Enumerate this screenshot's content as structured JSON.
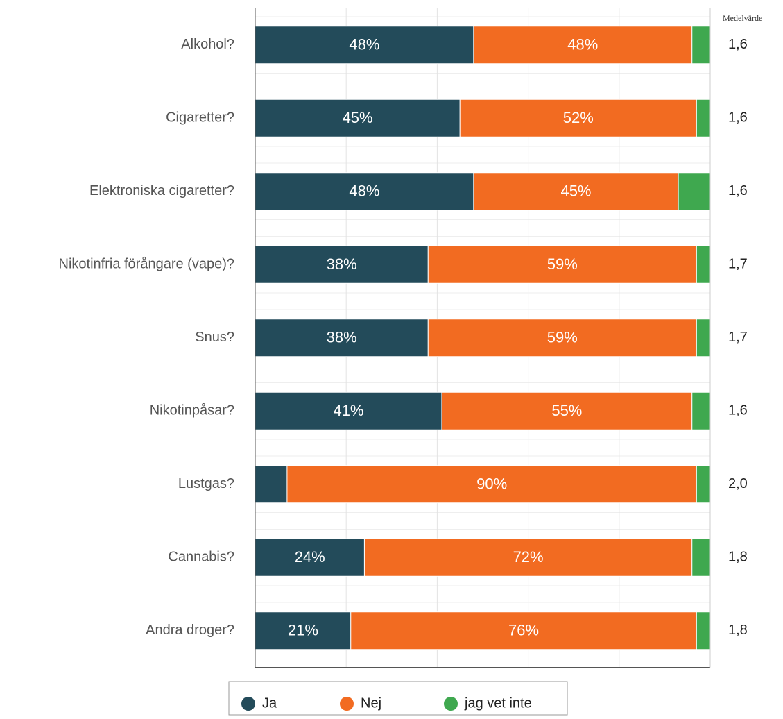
{
  "chart_data": {
    "type": "stacked-bar-horizontal",
    "categories": [
      "Alkohol?",
      "Cigaretter?",
      "Elektroniska cigaretter?",
      "Nikotinfria förångare (vape)?",
      "Snus?",
      "Nikotinpåsar?",
      "Lustgas?",
      "Cannabis?",
      "Andra droger?"
    ],
    "series": [
      {
        "name": "Ja",
        "color": "#234b5a",
        "values": [
          48,
          45,
          48,
          38,
          38,
          41,
          7,
          24,
          21
        ],
        "value_labels": [
          "48%",
          "45%",
          "48%",
          "38%",
          "38%",
          "41%",
          null,
          "24%",
          "21%"
        ]
      },
      {
        "name": "Nej",
        "color": "#f26b21",
        "values": [
          48,
          52,
          45,
          59,
          59,
          55,
          90,
          72,
          76
        ],
        "value_labels": [
          "48%",
          "52%",
          "45%",
          "59%",
          "59%",
          "55%",
          "90%",
          "72%",
          "76%"
        ]
      },
      {
        "name": "jag vet inte",
        "color": "#3fa84f",
        "values": [
          4,
          3,
          7,
          3,
          3,
          4,
          3,
          4,
          3
        ]
      }
    ],
    "xlim": [
      0,
      100
    ],
    "xticks": [
      0,
      20,
      40,
      60,
      80,
      100
    ],
    "grid": true,
    "legend": "bottom",
    "mean": {
      "title": "Medelvärde",
      "values": [
        1.6,
        1.6,
        1.6,
        1.7,
        1.7,
        1.6,
        2.0,
        1.8,
        1.8
      ],
      "value_labels": [
        "1,6",
        "1,6",
        "1,6",
        "1,7",
        "1,7",
        "1,6",
        "2,0",
        "1,8",
        "1,8"
      ]
    }
  }
}
